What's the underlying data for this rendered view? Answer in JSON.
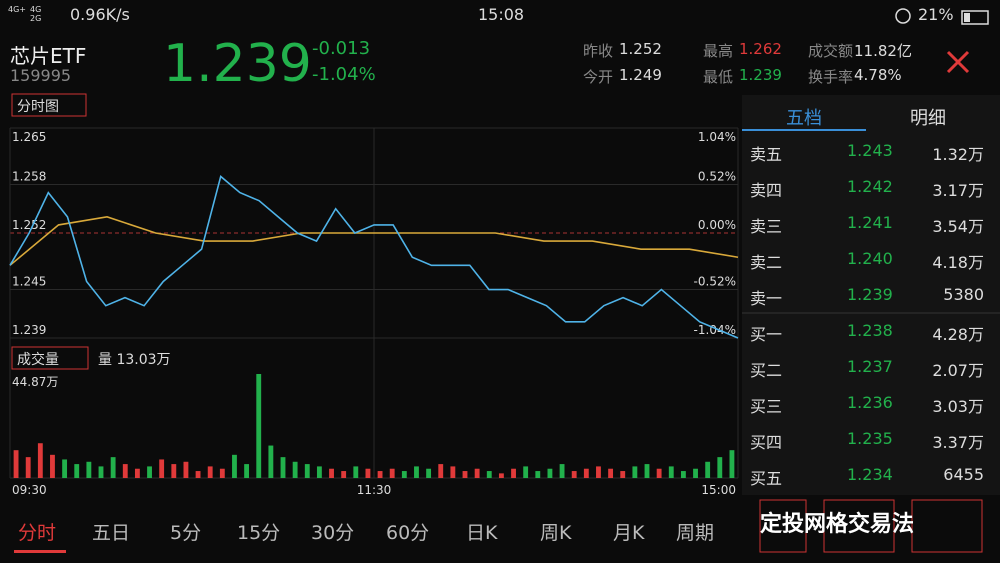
{
  "status_bar": {
    "net": [
      "4G+",
      "4G",
      "2G"
    ],
    "speed": "0.96K/s",
    "time": "15:08",
    "battery": "21%"
  },
  "header": {
    "name": "芯片ETF",
    "code": "159995",
    "price": "1.239",
    "change": "-0.013",
    "change_pct": "-1.04%",
    "stats": [
      {
        "label": "昨收",
        "value": "1.252"
      },
      {
        "label": "今开",
        "value": "1.249"
      },
      {
        "label": "最高",
        "value": "1.262"
      },
      {
        "label": "最低",
        "value": "1.239"
      },
      {
        "label": "成交额",
        "value": "11.82亿"
      },
      {
        "label": "换手率",
        "value": "4.78%"
      }
    ]
  },
  "price_chart": {
    "mode": "分时图",
    "ylim": [
      1.239,
      1.265
    ],
    "yticks": [
      1.265,
      1.258,
      1.252,
      1.245,
      1.239
    ],
    "pct_ticks": [
      "1.04%",
      "0.52%",
      "0.00%",
      "-0.52%",
      "-1.04%"
    ],
    "xticks": [
      "09:30",
      "11:30",
      "15:00"
    ],
    "price": [
      1.248,
      1.252,
      1.257,
      1.254,
      1.246,
      1.243,
      1.244,
      1.243,
      1.246,
      1.248,
      1.25,
      1.259,
      1.257,
      1.256,
      1.254,
      1.252,
      1.251,
      1.255,
      1.252,
      1.253,
      1.253,
      1.249,
      1.248,
      1.248,
      1.248,
      1.245,
      1.245,
      1.244,
      1.243,
      1.241,
      1.241,
      1.243,
      1.244,
      1.243,
      1.245,
      1.243,
      1.241,
      1.24,
      1.239
    ],
    "avg": [
      1.248,
      1.253,
      1.254,
      1.252,
      1.251,
      1.251,
      1.252,
      1.252,
      1.252,
      1.252,
      1.252,
      1.251,
      1.251,
      1.25,
      1.25,
      1.249
    ]
  },
  "volume_chart": {
    "label": "成交量",
    "current": "量 13.03万",
    "max": {
      "value": 44.87,
      "label": "44.87万"
    },
    "volumes": [
      12,
      9,
      15,
      10,
      8,
      6,
      7,
      5,
      9,
      6,
      4,
      5,
      8,
      6,
      7,
      3,
      5,
      4,
      10,
      6,
      44.87,
      14,
      9,
      7,
      6,
      5,
      4,
      3,
      5,
      4,
      3,
      4,
      3,
      5,
      4,
      6,
      5,
      3,
      4,
      3,
      2,
      4,
      5,
      3,
      4,
      6,
      3,
      4,
      5,
      4,
      3,
      5,
      6,
      4,
      5,
      3,
      4,
      7,
      9,
      12
    ]
  },
  "order_book": {
    "tabs": [
      "五档",
      "明细"
    ],
    "rows": [
      [
        "卖五",
        "1.243",
        "1.32万"
      ],
      [
        "卖四",
        "1.242",
        "3.17万"
      ],
      [
        "卖三",
        "1.241",
        "3.54万"
      ],
      [
        "卖二",
        "1.240",
        "4.18万"
      ],
      [
        "卖一",
        "1.239",
        "5380"
      ],
      [
        "买一",
        "1.238",
        "4.28万"
      ],
      [
        "买二",
        "1.237",
        "2.07万"
      ],
      [
        "买三",
        "1.236",
        "3.03万"
      ],
      [
        "买四",
        "1.235",
        "3.37万"
      ],
      [
        "买五",
        "1.234",
        "6455"
      ]
    ]
  },
  "bottom_tabs": [
    "分时",
    "五日",
    "5分",
    "15分",
    "30分",
    "60分",
    "日K",
    "周K",
    "月K",
    "周期"
  ],
  "watermark": "定投网格交易法"
}
